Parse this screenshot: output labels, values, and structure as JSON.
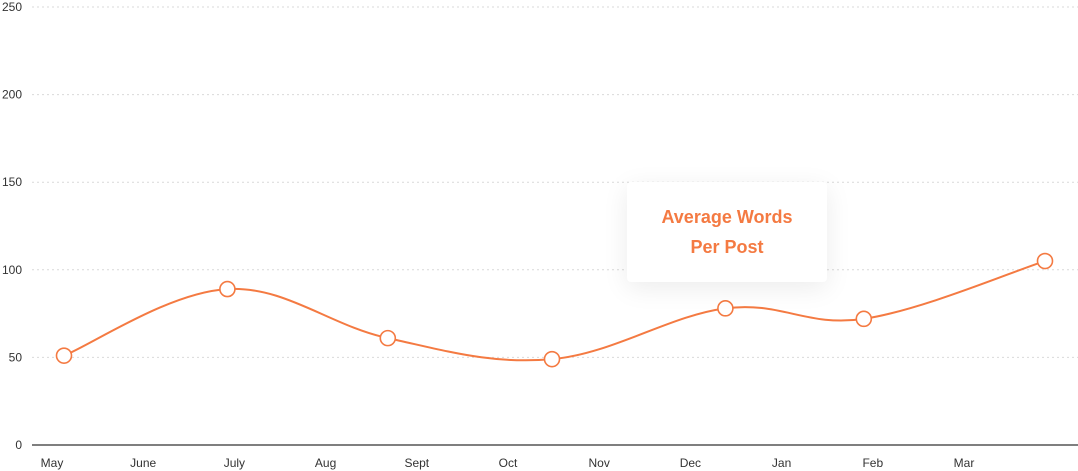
{
  "chart_data": {
    "type": "line",
    "categories": [
      "May",
      "June",
      "July",
      "Aug",
      "Sept",
      "Oct",
      "Nov",
      "Dec",
      "Jan",
      "Feb",
      "Mar"
    ],
    "yticks": [
      0,
      50,
      100,
      150,
      200,
      250
    ],
    "ylim": [
      0,
      250
    ],
    "grid": true,
    "series": [
      {
        "name": "Average Words Per Post",
        "points": [
          {
            "x": "May",
            "y": 51
          },
          {
            "x": "July",
            "y": 89
          },
          {
            "x": "Sept",
            "y": 61
          },
          {
            "x": "Oct",
            "y": 49
          },
          {
            "x": "Dec",
            "y": 78
          },
          {
            "x": "Feb",
            "y": 72
          },
          {
            "x": "Mar",
            "y": 105
          }
        ]
      }
    ],
    "colors": {
      "series": "#f47a42",
      "grid": "#d9d9d9",
      "axis": "#555555"
    }
  },
  "tooltip": {
    "line1": "Average Words",
    "line2": "Per Post"
  }
}
